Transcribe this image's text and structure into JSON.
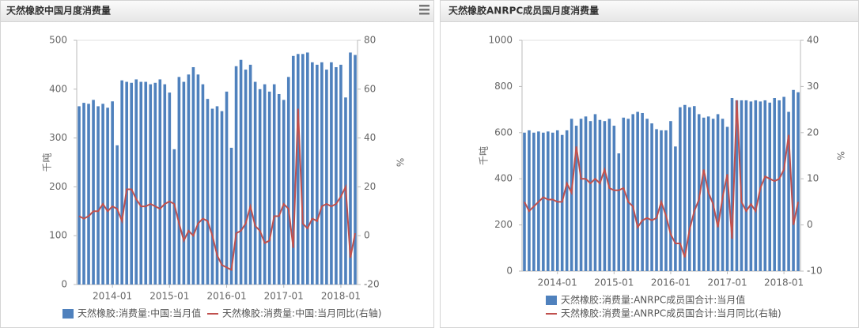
{
  "chart_data": [
    {
      "type": "bar_line",
      "title": "天然橡胶中国月度消费量",
      "categories": [
        null,
        null,
        null,
        null,
        null,
        null,
        null,
        "2014-01",
        null,
        null,
        null,
        null,
        null,
        null,
        null,
        null,
        null,
        null,
        null,
        "2015-01",
        null,
        null,
        null,
        null,
        null,
        null,
        null,
        null,
        null,
        null,
        null,
        "2016-01",
        null,
        null,
        null,
        null,
        null,
        null,
        null,
        null,
        null,
        null,
        null,
        "2017-01",
        null,
        null,
        null,
        null,
        null,
        null,
        null,
        null,
        null,
        null,
        null,
        "2018-01",
        null,
        null,
        null
      ],
      "series": [
        {
          "name": "天然橡胶:消费量:中国:当月值",
          "color": "#4f81bd",
          "kind": "bar",
          "values": [
            365,
            372,
            370,
            378,
            365,
            370,
            362,
            375,
            285,
            418,
            415,
            413,
            420,
            415,
            415,
            410,
            413,
            420,
            410,
            393,
            277,
            425,
            415,
            430,
            445,
            430,
            410,
            380,
            360,
            365,
            355,
            395,
            280,
            447,
            460,
            440,
            450,
            415,
            400,
            410,
            395,
            410,
            390,
            378,
            425,
            468,
            472,
            472,
            475,
            455,
            450,
            455,
            440,
            455,
            445,
            450,
            383,
            475,
            470
          ]
        },
        {
          "name": "天然橡胶:消费量:中国:当月同比(右轴)",
          "color": "#c0504d",
          "kind": "line",
          "axis": "y2",
          "values": [
            8,
            7,
            8,
            10,
            10,
            13,
            10,
            12,
            11,
            6,
            19,
            19,
            15,
            12,
            12,
            13,
            12,
            11,
            13,
            14,
            13,
            5,
            -2,
            2,
            0,
            5,
            7,
            6,
            0,
            -8,
            -12,
            -13,
            -14,
            1,
            2,
            5,
            12,
            4,
            2,
            -3,
            -2,
            8,
            8,
            13,
            11,
            -5,
            52,
            5,
            3,
            7,
            6,
            12,
            13,
            12,
            13,
            16,
            20,
            -9,
            1
          ]
        }
      ],
      "ylim": [
        0,
        500
      ],
      "yticks": [
        0,
        100,
        200,
        300,
        400,
        500
      ],
      "y2lim": [
        -20,
        80
      ],
      "y2ticks": [
        -20,
        0,
        20,
        40,
        60,
        80
      ],
      "ylabel": "千吨",
      "y2label": "%"
    },
    {
      "type": "bar_line",
      "title": "天然橡胶ANRPC成员国月度消费量",
      "categories": [
        null,
        null,
        null,
        null,
        null,
        null,
        null,
        "2014-01",
        null,
        null,
        null,
        null,
        null,
        null,
        null,
        null,
        null,
        null,
        null,
        "2015-01",
        null,
        null,
        null,
        null,
        null,
        null,
        null,
        null,
        null,
        null,
        null,
        "2016-01",
        null,
        null,
        null,
        null,
        null,
        null,
        null,
        null,
        null,
        null,
        null,
        "2017-01",
        null,
        null,
        null,
        null,
        null,
        null,
        null,
        null,
        null,
        null,
        null,
        "2018-01",
        null,
        null,
        null
      ],
      "series": [
        {
          "name": "天然橡胶:消费量:ANRPC成员国合计:当月值",
          "color": "#4f81bd",
          "kind": "bar",
          "values": [
            600,
            610,
            600,
            605,
            600,
            605,
            600,
            610,
            590,
            610,
            660,
            630,
            660,
            670,
            650,
            680,
            655,
            650,
            660,
            630,
            510,
            665,
            660,
            680,
            690,
            685,
            660,
            640,
            615,
            610,
            610,
            650,
            540,
            710,
            720,
            710,
            715,
            680,
            665,
            670,
            660,
            680,
            660,
            625,
            750,
            740,
            740,
            740,
            735,
            740,
            735,
            740,
            730,
            750,
            740,
            755,
            690,
            785,
            775
          ]
        },
        {
          "name": "天然橡胶:消费量:ANRPC成员国合计:当月同比(右轴)",
          "color": "#c0504d",
          "kind": "line",
          "axis": "y2",
          "values": [
            5,
            3,
            4,
            5,
            6,
            5.5,
            5.5,
            5,
            5,
            9,
            7,
            17,
            10,
            10,
            9,
            10,
            9,
            12,
            8,
            7.5,
            7.5,
            8,
            5,
            4,
            -0.5,
            1,
            1.5,
            1,
            1.5,
            5,
            2,
            -2,
            -4,
            -4,
            -7,
            -1,
            3,
            5.5,
            12,
            7,
            4.5,
            -0.5,
            6,
            11,
            -3,
            27,
            5,
            3,
            4.5,
            3,
            8,
            10.5,
            10,
            9.5,
            10,
            12,
            19.5,
            0,
            5
          ]
        }
      ],
      "ylim": [
        0,
        1000
      ],
      "yticks": [
        0,
        200,
        400,
        600,
        800,
        1000
      ],
      "y2lim": [
        -10,
        40
      ],
      "y2ticks": [
        -10,
        0,
        10,
        20,
        30,
        40
      ],
      "ylabel": "千吨",
      "y2label": "%"
    }
  ]
}
